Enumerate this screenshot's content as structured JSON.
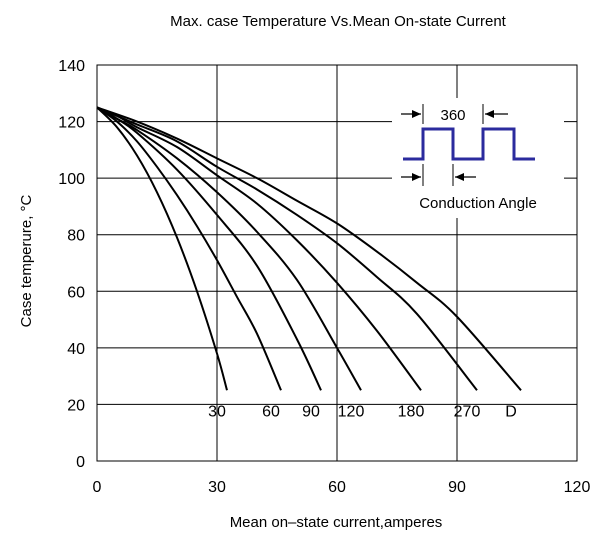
{
  "chart_data": {
    "type": "line",
    "title": "Max. case Temperature  Vs.Mean On-state  Current",
    "xlabel": "Mean on–state current,amperes",
    "ylabel": "Case temperure, °C",
    "xlim": [
      0,
      120
    ],
    "ylim": [
      0,
      140
    ],
    "xticks": [
      "0",
      "30",
      "60",
      "90",
      "120"
    ],
    "yticks": [
      "0",
      "20",
      "40",
      "60",
      "80",
      "100",
      "120",
      "140"
    ],
    "grid": true,
    "series": [
      {
        "name": "30",
        "x": [
          0,
          5,
          10,
          15,
          20,
          25,
          30,
          32.5
        ],
        "y": [
          125,
          118,
          108,
          95,
          79,
          60,
          38,
          25
        ]
      },
      {
        "name": "60",
        "x": [
          0,
          5,
          10,
          15,
          20,
          25,
          30,
          35,
          40,
          46
        ],
        "y": [
          125,
          120,
          113,
          104,
          94,
          83,
          71,
          58,
          45,
          25
        ]
      },
      {
        "name": "90",
        "x": [
          0,
          5,
          10,
          20,
          30,
          40,
          50,
          56
        ],
        "y": [
          125,
          121,
          116,
          103,
          87,
          69,
          43,
          25
        ]
      },
      {
        "name": "120",
        "x": [
          0,
          5,
          10,
          20,
          30,
          40,
          50,
          60,
          66
        ],
        "y": [
          125,
          121,
          117,
          107,
          95,
          81,
          64,
          40,
          25
        ]
      },
      {
        "name": "180",
        "x": [
          0,
          5,
          10,
          20,
          30,
          40,
          50,
          60,
          70,
          81
        ],
        "y": [
          125,
          122,
          118,
          111,
          101,
          91,
          78,
          63,
          46,
          25
        ]
      },
      {
        "name": "270",
        "x": [
          0,
          10,
          20,
          30,
          40,
          50,
          60,
          70,
          80,
          95
        ],
        "y": [
          125,
          119,
          113,
          104,
          96,
          87,
          77,
          65,
          52,
          25
        ]
      },
      {
        "name": "D",
        "x": [
          0,
          10,
          20,
          30,
          40,
          50,
          60,
          70,
          80,
          90,
          106
        ],
        "y": [
          125,
          120,
          114,
          107,
          100,
          92,
          84,
          74,
          63,
          51,
          25
        ]
      }
    ],
    "annotations": {
      "period_label": "360",
      "angle_label": "Conduction Angle",
      "waveform_color": "#2b2b9e"
    }
  }
}
